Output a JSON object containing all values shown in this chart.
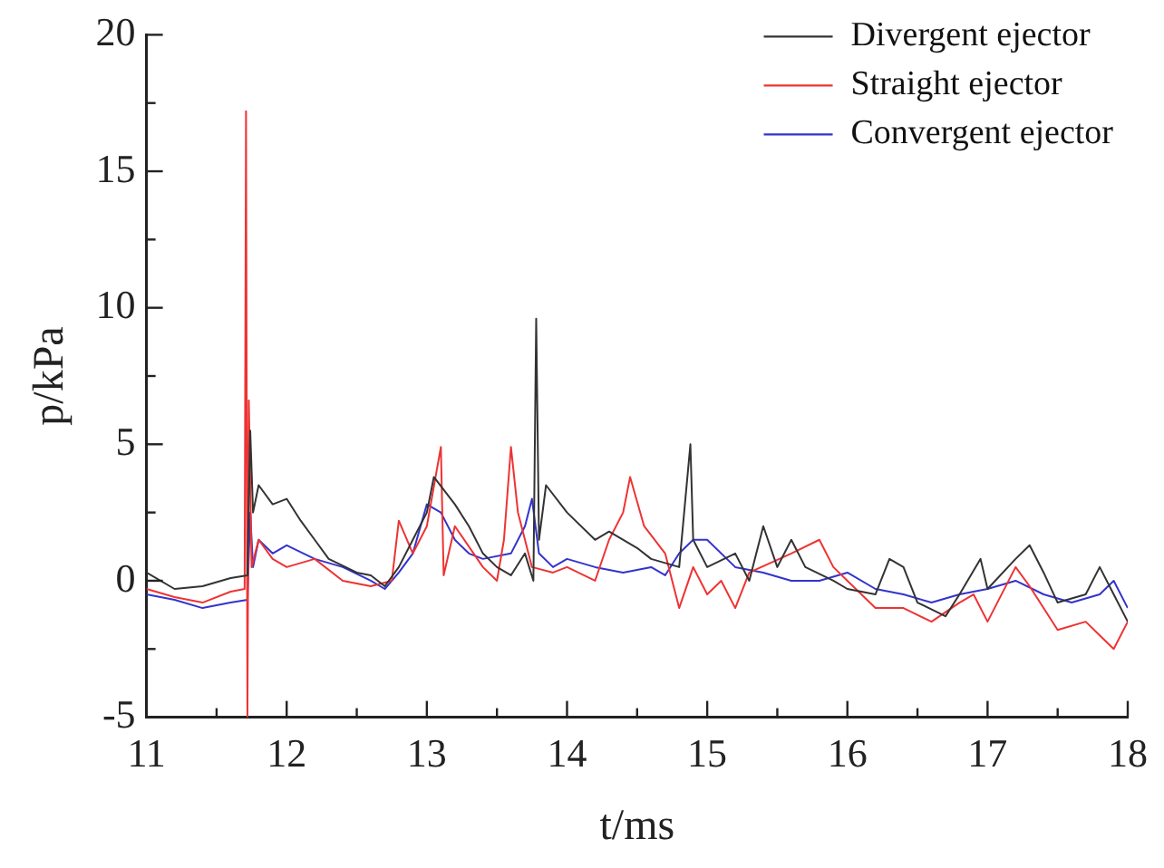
{
  "chart_data": {
    "type": "line",
    "xlabel": "t/ms",
    "ylabel": "p/kPa",
    "xlim": [
      11,
      18
    ],
    "ylim": [
      -5,
      20
    ],
    "xticks": [
      11,
      {
        "value": 11.5,
        "label": null
      },
      12,
      {
        "value": 12.5,
        "label": null
      },
      13,
      {
        "value": 13.5,
        "label": null
      },
      14,
      {
        "value": 14.5,
        "label": null
      },
      15,
      {
        "value": 15.5,
        "label": null
      },
      16,
      {
        "value": 16.5,
        "label": null
      },
      17,
      {
        "value": 17.5,
        "label": null
      },
      18
    ],
    "yticks": [
      -5,
      {
        "value": -2.5,
        "label": null
      },
      0,
      {
        "value": 2.5,
        "label": null
      },
      5,
      {
        "value": 7.5,
        "label": null
      },
      10,
      {
        "value": 12.5,
        "label": null
      },
      15,
      {
        "value": 17.5,
        "label": null
      },
      20
    ],
    "grid": false,
    "legend": "top right",
    "marker": "none",
    "line_style": "solid",
    "series": [
      {
        "name": "Divergent ejector",
        "color": "#333333",
        "x": [
          11.0,
          11.2,
          11.4,
          11.6,
          11.72,
          11.74,
          11.76,
          11.8,
          11.9,
          12.0,
          12.1,
          12.2,
          12.3,
          12.5,
          12.6,
          12.7,
          12.8,
          12.9,
          13.0,
          13.05,
          13.2,
          13.3,
          13.4,
          13.5,
          13.6,
          13.7,
          13.76,
          13.78,
          13.8,
          13.85,
          14.0,
          14.2,
          14.3,
          14.5,
          14.6,
          14.8,
          14.88,
          14.9,
          15.0,
          15.2,
          15.3,
          15.4,
          15.5,
          15.6,
          15.7,
          15.9,
          16.0,
          16.2,
          16.3,
          16.4,
          16.5,
          16.7,
          16.8,
          16.95,
          17.0,
          17.2,
          17.3,
          17.4,
          17.5,
          17.7,
          17.8,
          17.9,
          18.0
        ],
        "values": [
          0.3,
          -0.3,
          -0.2,
          0.1,
          0.2,
          5.5,
          2.5,
          3.5,
          2.8,
          3.0,
          2.2,
          1.5,
          0.8,
          0.3,
          0.2,
          -0.2,
          0.5,
          1.5,
          2.5,
          3.8,
          2.8,
          2.0,
          1.0,
          0.5,
          0.2,
          1.0,
          0.0,
          9.6,
          1.5,
          3.5,
          2.5,
          1.5,
          1.8,
          1.2,
          0.8,
          0.5,
          5.0,
          1.5,
          0.5,
          1.0,
          0.0,
          2.0,
          0.5,
          1.5,
          0.5,
          0.0,
          -0.3,
          -0.5,
          0.8,
          0.5,
          -0.8,
          -1.3,
          -0.5,
          0.8,
          -0.3,
          0.8,
          1.3,
          0.3,
          -0.8,
          -0.5,
          0.5,
          -0.5,
          -1.5
        ]
      },
      {
        "name": "Straight ejector",
        "color": "#ee3333",
        "x": [
          11.0,
          11.2,
          11.4,
          11.6,
          11.7,
          11.71,
          11.72,
          11.73,
          11.75,
          11.8,
          11.9,
          12.0,
          12.2,
          12.4,
          12.6,
          12.75,
          12.8,
          12.9,
          13.0,
          13.1,
          13.12,
          13.2,
          13.4,
          13.5,
          13.55,
          13.6,
          13.65,
          13.75,
          13.9,
          14.0,
          14.2,
          14.3,
          14.4,
          14.45,
          14.55,
          14.7,
          14.8,
          14.9,
          15.0,
          15.1,
          15.2,
          15.3,
          15.6,
          15.8,
          15.9,
          16.0,
          16.2,
          16.4,
          16.6,
          16.8,
          16.9,
          17.0,
          17.2,
          17.3,
          17.5,
          17.7,
          17.8,
          17.9,
          18.0
        ],
        "values": [
          -0.3,
          -0.6,
          -0.8,
          -0.4,
          -0.3,
          17.2,
          -5,
          6.6,
          0.5,
          1.5,
          0.8,
          0.5,
          0.8,
          0.0,
          -0.2,
          0.0,
          2.2,
          1.0,
          2.0,
          4.9,
          0.2,
          2.0,
          0.5,
          0.0,
          1.5,
          4.9,
          2.5,
          0.5,
          0.3,
          0.5,
          0.0,
          1.5,
          2.5,
          3.8,
          2.0,
          1.0,
          -1.0,
          0.5,
          -0.5,
          0.0,
          -1.0,
          0.3,
          1.0,
          1.5,
          0.5,
          0.0,
          -1.0,
          -1.0,
          -1.5,
          -0.8,
          -0.5,
          -1.5,
          0.5,
          -0.2,
          -1.8,
          -1.5,
          -2.0,
          -2.5,
          -1.5
        ]
      },
      {
        "name": "Convergent ejector",
        "color": "#3333cc",
        "x": [
          11.0,
          11.2,
          11.4,
          11.6,
          11.72,
          11.74,
          11.76,
          11.8,
          11.9,
          12.0,
          12.2,
          12.4,
          12.6,
          12.7,
          12.8,
          12.9,
          13.0,
          13.1,
          13.2,
          13.3,
          13.4,
          13.6,
          13.7,
          13.75,
          13.8,
          13.9,
          14.0,
          14.2,
          14.4,
          14.6,
          14.7,
          14.8,
          14.9,
          15.0,
          15.2,
          15.4,
          15.6,
          15.8,
          16.0,
          16.2,
          16.4,
          16.6,
          16.8,
          17.0,
          17.2,
          17.4,
          17.6,
          17.8,
          17.9,
          18.0
        ],
        "values": [
          -0.5,
          -0.7,
          -1.0,
          -0.8,
          -0.7,
          2.5,
          0.5,
          1.5,
          1.0,
          1.3,
          0.8,
          0.5,
          0.0,
          -0.3,
          0.3,
          1.0,
          2.8,
          2.5,
          1.5,
          1.0,
          0.8,
          1.0,
          2.0,
          3.0,
          1.0,
          0.5,
          0.8,
          0.5,
          0.3,
          0.5,
          0.2,
          1.0,
          1.5,
          1.5,
          0.5,
          0.3,
          0.0,
          0.0,
          0.3,
          -0.3,
          -0.5,
          -0.8,
          -0.5,
          -0.3,
          0.0,
          -0.5,
          -0.8,
          -0.5,
          0.0,
          -1.0
        ]
      }
    ]
  }
}
